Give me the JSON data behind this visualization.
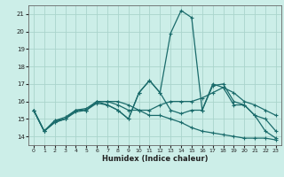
{
  "xlabel": "Humidex (Indice chaleur)",
  "ylabel": "",
  "background_color": "#cceee8",
  "grid_color": "#aad4cc",
  "line_color": "#1a6b6b",
  "xlim": [
    -0.5,
    23.5
  ],
  "ylim": [
    13.5,
    21.5
  ],
  "xticks": [
    0,
    1,
    2,
    3,
    4,
    5,
    6,
    7,
    8,
    9,
    10,
    11,
    12,
    13,
    14,
    15,
    16,
    17,
    18,
    19,
    20,
    21,
    22,
    23
  ],
  "yticks": [
    14,
    15,
    16,
    17,
    18,
    19,
    20,
    21
  ],
  "series": [
    {
      "x": [
        0,
        1,
        2,
        3,
        4,
        5,
        6,
        7,
        8,
        9,
        10,
        11,
        12,
        13,
        14,
        15,
        16,
        17,
        18,
        19,
        20,
        21,
        22,
        23
      ],
      "y": [
        15.5,
        14.3,
        14.8,
        15.0,
        15.5,
        15.5,
        16.0,
        16.0,
        16.0,
        15.8,
        15.5,
        15.2,
        15.2,
        15.0,
        14.8,
        14.5,
        14.3,
        14.2,
        14.1,
        14.0,
        13.9,
        13.9,
        13.9,
        13.8
      ]
    },
    {
      "x": [
        0,
        1,
        2,
        3,
        4,
        5,
        6,
        7,
        8,
        9,
        10,
        11,
        12,
        13,
        14,
        15,
        16,
        17,
        18,
        19,
        20,
        21,
        22,
        23
      ],
      "y": [
        15.5,
        14.3,
        14.8,
        15.0,
        15.5,
        15.5,
        16.0,
        15.8,
        15.5,
        15.0,
        16.5,
        17.2,
        16.5,
        19.9,
        21.2,
        20.8,
        15.5,
        17.0,
        16.8,
        15.8,
        15.8,
        15.2,
        14.3,
        13.9
      ]
    },
    {
      "x": [
        0,
        1,
        2,
        3,
        4,
        5,
        6,
        7,
        8,
        9,
        10,
        11,
        12,
        13,
        14,
        15,
        16,
        17,
        18,
        19,
        20,
        21,
        22,
        23
      ],
      "y": [
        15.5,
        14.3,
        14.9,
        15.1,
        15.5,
        15.6,
        16.0,
        16.0,
        15.8,
        15.5,
        15.5,
        15.5,
        15.8,
        16.0,
        16.0,
        16.0,
        16.2,
        16.5,
        16.8,
        16.5,
        16.0,
        15.8,
        15.5,
        15.2
      ]
    },
    {
      "comment": "line with bump at 10-11 (17.2) and 17-18 (17.0)",
      "x": [
        0,
        1,
        2,
        3,
        4,
        5,
        6,
        7,
        8,
        9,
        10,
        11,
        12,
        13,
        14,
        15,
        16,
        17,
        18,
        19,
        20,
        21,
        22,
        23
      ],
      "y": [
        15.5,
        14.3,
        14.9,
        15.0,
        15.4,
        15.5,
        15.9,
        15.8,
        15.5,
        15.0,
        16.5,
        17.2,
        16.5,
        15.5,
        15.3,
        15.5,
        15.5,
        16.9,
        17.0,
        16.0,
        15.8,
        15.2,
        15.0,
        14.3
      ]
    }
  ]
}
